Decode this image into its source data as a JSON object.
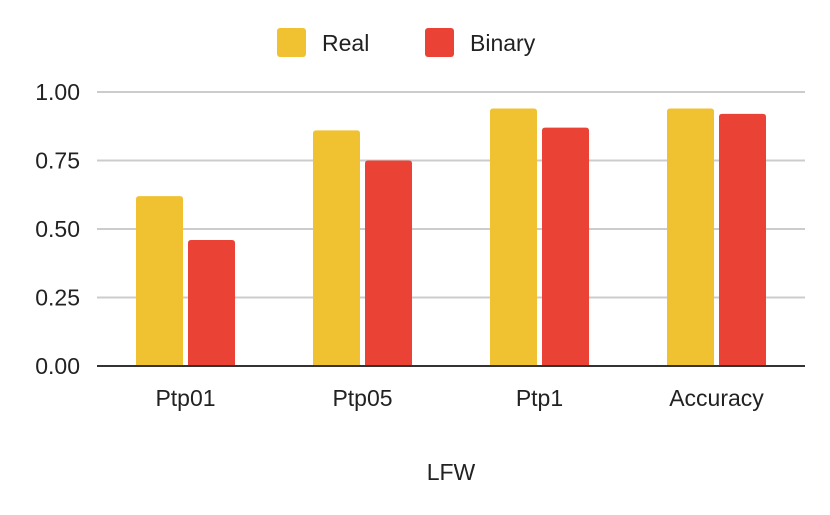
{
  "chart_data": {
    "type": "bar",
    "categories": [
      "Ptp01",
      "Ptp05",
      "Ptp1",
      "Accuracy"
    ],
    "series": [
      {
        "name": "Real",
        "color": "#F0C232",
        "values": [
          0.62,
          0.86,
          0.94,
          0.94
        ]
      },
      {
        "name": "Binary",
        "color": "#EA4335",
        "values": [
          0.46,
          0.75,
          0.87,
          0.92
        ]
      }
    ],
    "xlabel": "LFW",
    "ylabel": "",
    "ylim": [
      0,
      1
    ],
    "yticks": [
      "0.00",
      "0.25",
      "0.50",
      "0.75",
      "1.00"
    ],
    "grid": true,
    "legend": "top-center"
  }
}
